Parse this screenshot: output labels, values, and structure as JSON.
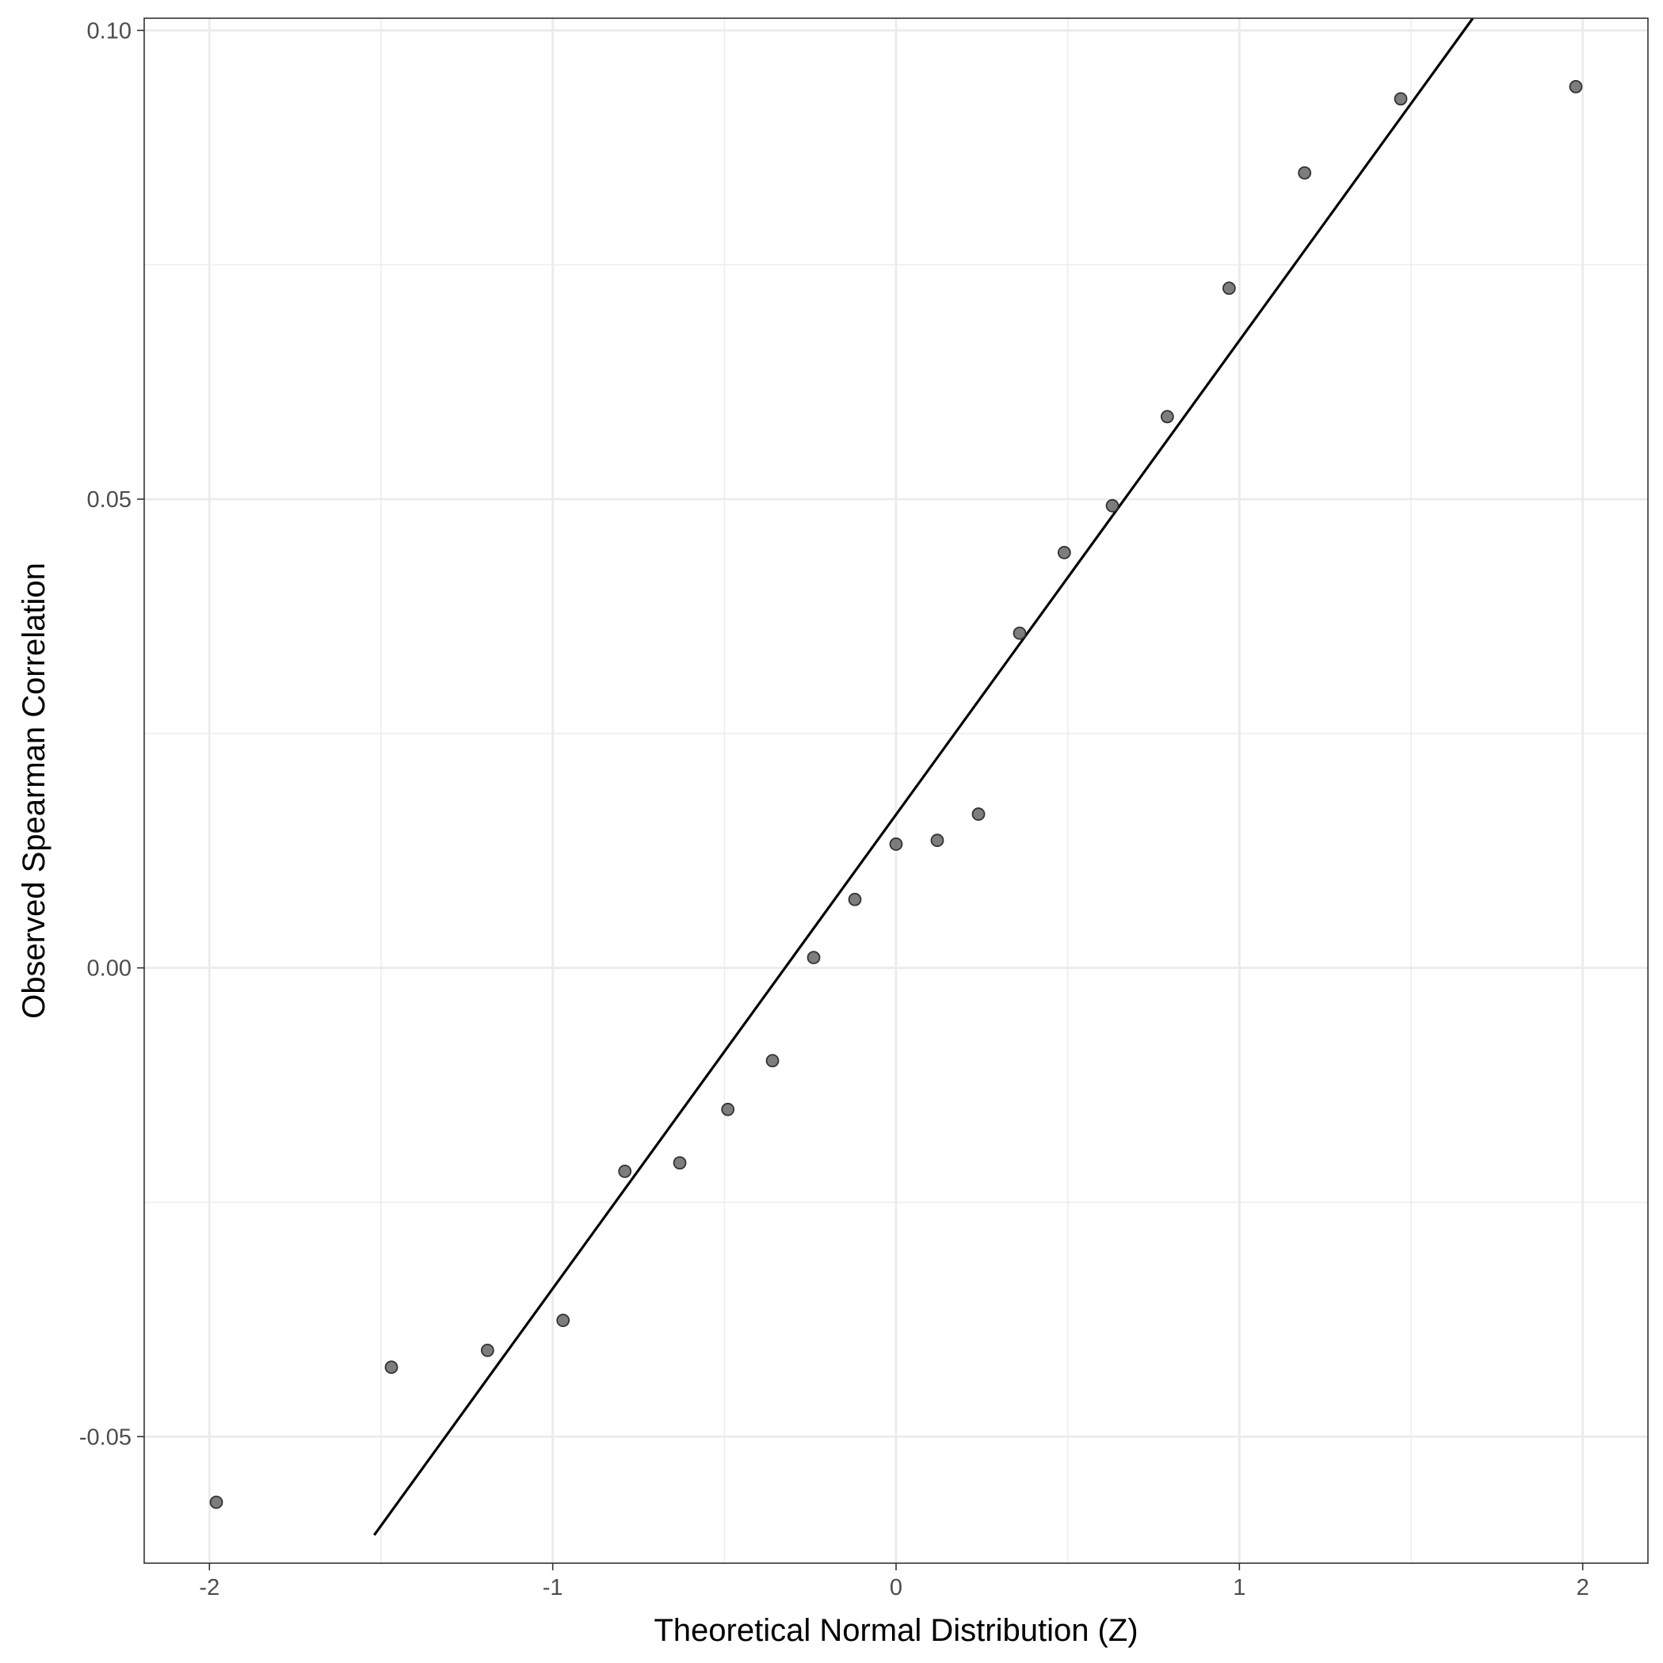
{
  "chart_data": {
    "type": "scatter",
    "title": "",
    "xlabel": "Theoretical Normal Distribution (Z)",
    "ylabel": "Observed Spearman Correlation",
    "xlim": [
      -2.19,
      2.19
    ],
    "ylim": [
      -0.0635,
      0.1013
    ],
    "x_ticks": [
      -2,
      -1,
      0,
      1,
      2
    ],
    "x_tick_labels": [
      "-2",
      "-1",
      "0",
      "1",
      "2"
    ],
    "x_minor_ticks": [
      -1.5,
      -0.5,
      0.5,
      1.5
    ],
    "y_ticks": [
      -0.05,
      0.0,
      0.05,
      0.1
    ],
    "y_tick_labels": [
      "-0.05",
      "0.00",
      "0.05",
      "0.10"
    ],
    "y_minor_ticks": [
      -0.025,
      0.025,
      0.075
    ],
    "grid": true,
    "points": {
      "color": "#666666",
      "x": [
        -1.98,
        -1.47,
        -1.19,
        -0.97,
        -0.79,
        -0.63,
        -0.49,
        -0.36,
        -0.24,
        -0.12,
        0.0,
        0.12,
        0.24,
        0.36,
        0.49,
        0.63,
        0.79,
        0.97,
        1.19,
        1.47,
        1.98
      ],
      "y": [
        -0.057,
        -0.0426,
        -0.0408,
        -0.0376,
        -0.0217,
        -0.0208,
        -0.0151,
        -0.0099,
        0.0011,
        0.0073,
        0.0132,
        0.0136,
        0.0164,
        0.0357,
        0.0443,
        0.0493,
        0.0588,
        0.0725,
        0.0848,
        0.0927,
        0.094
      ]
    },
    "reference_line": {
      "color": "#000000",
      "x": [
        -1.52,
        1.68
      ],
      "y": [
        -0.0605,
        0.1013
      ]
    }
  }
}
